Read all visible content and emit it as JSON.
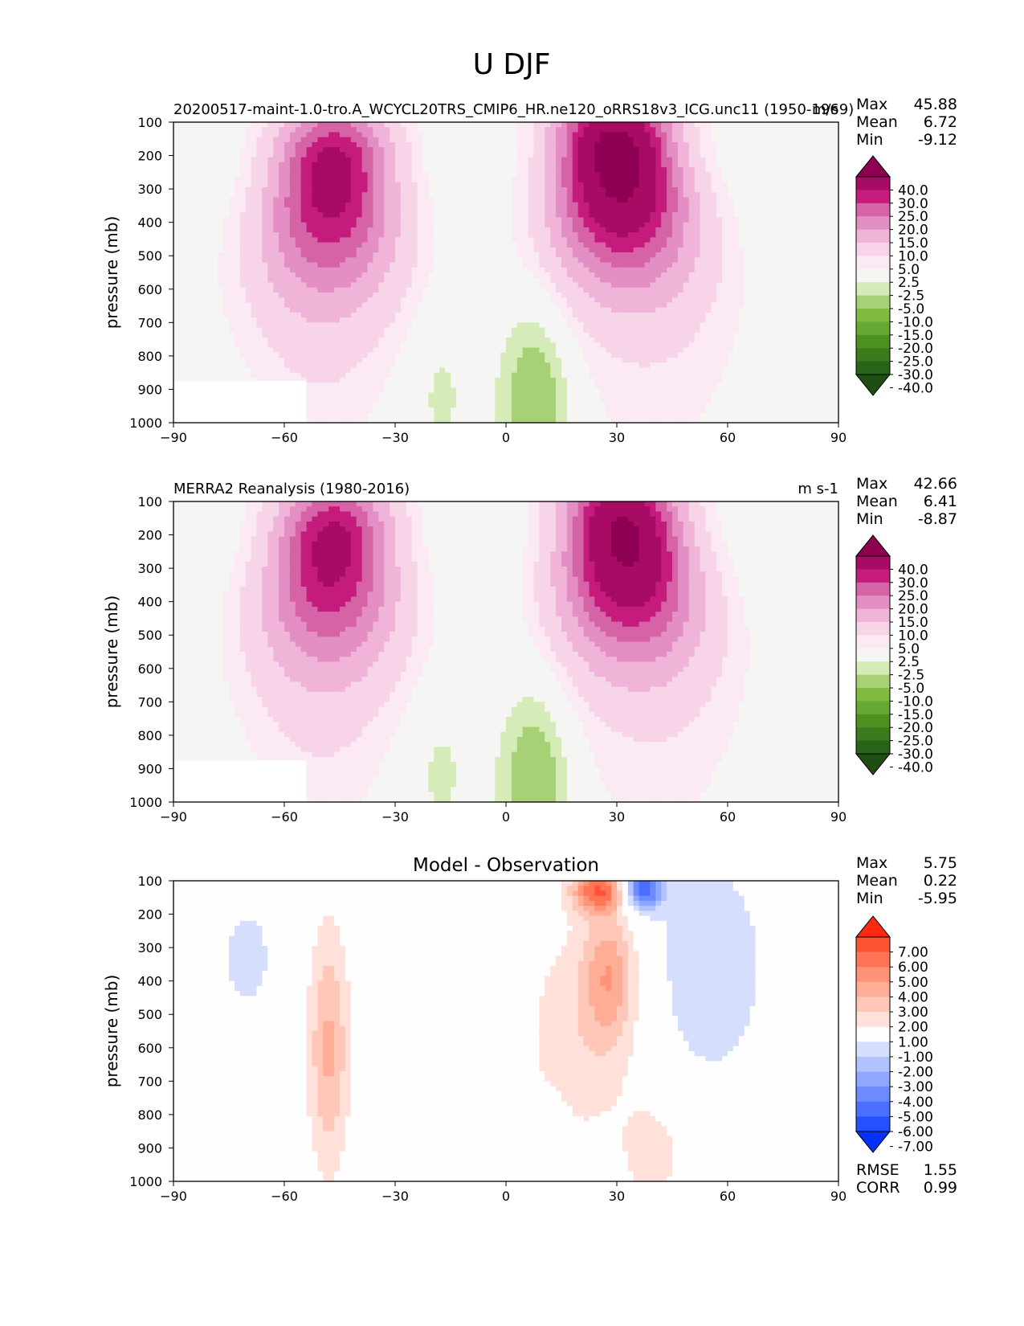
{
  "figure": {
    "title": "U DJF"
  },
  "colors": {
    "field": [
      "#276419",
      "#4d9221",
      "#7fbc41",
      "#b8e186",
      "#e6f5d0",
      "#f7f7f7",
      "#fde0ef",
      "#f1b6da",
      "#de77ae",
      "#c51b7d",
      "#8e0152"
    ],
    "diff": [
      "#0431ff",
      "#3f6bff",
      "#7b96ff",
      "#b4c3ff",
      "#e4e9ff",
      "#ffffff",
      "#ffe1d9",
      "#ffb3a0",
      "#ff846a",
      "#ff5a38",
      "#ff2a10"
    ]
  },
  "chart_data": [
    {
      "type": "contour",
      "panel": "test",
      "title_left": "20200517-maint-1.0-tro.A_WCYCL20TRS_CMIP6_HR.ne120_oRRS18v3_ICG.unc11 (1950-1969)",
      "title_right": "m/s",
      "title_center": "",
      "ylabel": "pressure (mb)",
      "xlabel": "",
      "xlim": [
        -90,
        90
      ],
      "ylim": [
        1000,
        100
      ],
      "xticks": [
        "−90",
        "−60",
        "−30",
        "0",
        "30",
        "60",
        "90"
      ],
      "yticks": [
        "100",
        "200",
        "300",
        "400",
        "500",
        "600",
        "700",
        "800",
        "900",
        "1000"
      ],
      "stats": [
        {
          "label": "Max",
          "value": "45.88"
        },
        {
          "label": "Mean",
          "value": "6.72"
        },
        {
          "label": "Min",
          "value": "-9.12"
        }
      ],
      "colorbar_levels": [
        "40.0",
        "30.0",
        "25.0",
        "20.0",
        "15.0",
        "10.0",
        "5.0",
        "2.5",
        "-2.5",
        "-5.0",
        "-10.0",
        "-15.0",
        "-20.0",
        "-25.0",
        "-30.0",
        "-40.0"
      ],
      "jets": [
        {
          "lat": -47,
          "p": 250,
          "speed": 34
        },
        {
          "lat": 30,
          "p": 200,
          "speed": 45.88
        }
      ],
      "easterlies": [
        {
          "lat": 8,
          "p": 950,
          "speed": -9
        }
      ]
    },
    {
      "type": "contour",
      "panel": "reference",
      "title_left": "MERRA2 Reanalysis (1980-2016)",
      "title_right": "m s-1",
      "title_center": "",
      "ylabel": "pressure (mb)",
      "xlabel": "",
      "xlim": [
        -90,
        90
      ],
      "ylim": [
        1000,
        100
      ],
      "xticks": [
        "−90",
        "−60",
        "−30",
        "0",
        "30",
        "60",
        "90"
      ],
      "yticks": [
        "100",
        "200",
        "300",
        "400",
        "500",
        "600",
        "700",
        "800",
        "900",
        "1000"
      ],
      "stats": [
        {
          "label": "Max",
          "value": "42.66"
        },
        {
          "label": "Mean",
          "value": "6.41"
        },
        {
          "label": "Min",
          "value": "-8.87"
        }
      ],
      "colorbar_levels": [
        "40.0",
        "30.0",
        "25.0",
        "20.0",
        "15.0",
        "10.0",
        "5.0",
        "2.5",
        "-2.5",
        "-5.0",
        "-10.0",
        "-15.0",
        "-20.0",
        "-25.0",
        "-30.0",
        "-40.0"
      ],
      "jets": [
        {
          "lat": -47,
          "p": 230,
          "speed": 33
        },
        {
          "lat": 32,
          "p": 200,
          "speed": 42.66
        }
      ],
      "easterlies": [
        {
          "lat": 8,
          "p": 950,
          "speed": -8.87
        }
      ]
    },
    {
      "type": "contour",
      "panel": "difference",
      "title_left": "",
      "title_right": "",
      "title_center": "Model - Observation",
      "ylabel": "pressure (mb)",
      "xlabel": "",
      "xlim": [
        -90,
        90
      ],
      "ylim": [
        1000,
        100
      ],
      "xticks": [
        "−90",
        "−60",
        "−30",
        "0",
        "30",
        "60",
        "90"
      ],
      "yticks": [
        "100",
        "200",
        "300",
        "400",
        "500",
        "600",
        "700",
        "800",
        "900",
        "1000"
      ],
      "stats": [
        {
          "label": "Max",
          "value": "5.75"
        },
        {
          "label": "Mean",
          "value": "0.22"
        },
        {
          "label": "Min",
          "value": "-5.95"
        }
      ],
      "extra_stats": [
        {
          "label": "RMSE",
          "value": "1.55"
        },
        {
          "label": "CORR",
          "value": "0.99"
        }
      ],
      "colorbar_levels": [
        "7.00",
        "6.00",
        "5.00",
        "4.00",
        "3.00",
        "2.00",
        "1.00",
        "-1.00",
        "-2.00",
        "-3.00",
        "-4.00",
        "-5.00",
        "-6.00",
        "-7.00"
      ]
    }
  ]
}
